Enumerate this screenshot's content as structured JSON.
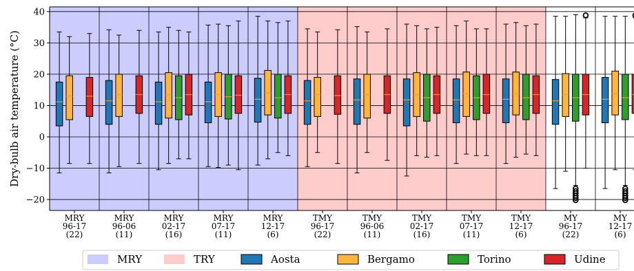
{
  "chart_data": {
    "type": "boxplot",
    "ylabel": "Dry-bulb air temperature (°C)",
    "ylim": [
      -23.5,
      41.5
    ],
    "yticks": [
      -20,
      -10,
      0,
      10,
      20,
      30,
      40
    ],
    "grid": true,
    "legend_position": "bottom",
    "legend": [
      {
        "label": "MRY",
        "color": "#ccccff"
      },
      {
        "label": "TRY",
        "color": "#ffcccc"
      },
      {
        "label": "Aosta",
        "color": "#1f77b4"
      },
      {
        "label": "Bergamo",
        "color": "#ffb63a"
      },
      {
        "label": "Torino",
        "color": "#2ca02c"
      },
      {
        "label": "Udine",
        "color": "#d62728"
      }
    ],
    "series": [
      {
        "name": "Aosta",
        "color": "#1f77b4"
      },
      {
        "name": "Bergamo",
        "color": "#ffb63a"
      },
      {
        "name": "Torino",
        "color": "#2ca02c"
      },
      {
        "name": "Udine",
        "color": "#d62728"
      }
    ],
    "region_colors": {
      "MRY": "#ccccff",
      "TRY": "#ffcccc",
      "MY": "#ffffff"
    },
    "median_color": "#ff9a1e",
    "groups": [
      {
        "label": [
          "MRY",
          "96-17",
          "(22)"
        ],
        "type": "MRY",
        "boxes": [
          {
            "series": "Aosta",
            "min": -11.5,
            "q1": 3.5,
            "median": 11.2,
            "q3": 17.5,
            "max": 33.5,
            "outliers": []
          },
          {
            "series": "Bergamo",
            "min": -8.5,
            "q1": 5.5,
            "median": 13.0,
            "q3": 19.5,
            "max": 32.0,
            "outliers": []
          },
          {
            "series": "Udine",
            "min": -8.5,
            "q1": 6.5,
            "median": 13.0,
            "q3": 19.0,
            "max": 33.0,
            "outliers": []
          }
        ]
      },
      {
        "label": [
          "MRY",
          "96-06",
          "(11)"
        ],
        "type": "MRY",
        "boxes": [
          {
            "series": "Aosta",
            "min": -11.5,
            "q1": 4.0,
            "median": 11.5,
            "q3": 18.0,
            "max": 34.2,
            "outliers": []
          },
          {
            "series": "Bergamo",
            "min": -9.5,
            "q1": 6.5,
            "median": 13.5,
            "q3": 20.0,
            "max": 32.5,
            "outliers": []
          },
          {
            "series": "Udine",
            "min": -8.5,
            "q1": 7.5,
            "median": 13.5,
            "q3": 19.5,
            "max": 34.0,
            "outliers": []
          }
        ]
      },
      {
        "label": [
          "MRY",
          "02-17",
          "(16)"
        ],
        "type": "MRY",
        "boxes": [
          {
            "series": "Aosta",
            "min": -10.5,
            "q1": 4.0,
            "median": 11.2,
            "q3": 17.5,
            "max": 33.5,
            "outliers": []
          },
          {
            "series": "Bergamo",
            "min": -8.5,
            "q1": 6.0,
            "median": 13.5,
            "q3": 20.5,
            "max": 35.0,
            "outliers": []
          },
          {
            "series": "Torino",
            "min": -7.0,
            "q1": 5.5,
            "median": 12.5,
            "q3": 19.5,
            "max": 34.0,
            "outliers": []
          },
          {
            "series": "Udine",
            "min": -7.0,
            "q1": 7.0,
            "median": 13.5,
            "q3": 20.0,
            "max": 33.5,
            "outliers": []
          }
        ]
      },
      {
        "label": [
          "MRY",
          "07-17",
          "(11)"
        ],
        "type": "MRY",
        "boxes": [
          {
            "series": "Aosta",
            "min": -9.5,
            "q1": 4.5,
            "median": 11.2,
            "q3": 17.5,
            "max": 35.7,
            "outliers": []
          },
          {
            "series": "Bergamo",
            "min": -9.8,
            "q1": 6.5,
            "median": 13.5,
            "q3": 20.5,
            "max": 36.0,
            "outliers": []
          },
          {
            "series": "Torino",
            "min": -9.0,
            "q1": 5.7,
            "median": 12.8,
            "q3": 20.0,
            "max": 35.5,
            "outliers": []
          },
          {
            "series": "Udine",
            "min": -10.5,
            "q1": 7.5,
            "median": 13.3,
            "q3": 19.5,
            "max": 37.0,
            "outliers": []
          }
        ]
      },
      {
        "label": [
          "MRY",
          "12-17",
          "(6)"
        ],
        "type": "MRY",
        "boxes": [
          {
            "series": "Aosta",
            "min": -9.0,
            "q1": 4.7,
            "median": 12.0,
            "q3": 18.7,
            "max": 38.5,
            "outliers": []
          },
          {
            "series": "Bergamo",
            "min": -7.0,
            "q1": 7.0,
            "median": 14.0,
            "q3": 21.2,
            "max": 37.0,
            "outliers": []
          },
          {
            "series": "Torino",
            "min": -5.0,
            "q1": 6.0,
            "median": 12.5,
            "q3": 20.0,
            "max": 36.5,
            "outliers": []
          },
          {
            "series": "Udine",
            "min": -6.0,
            "q1": 7.5,
            "median": 13.5,
            "q3": 19.5,
            "max": 37.0,
            "outliers": []
          }
        ]
      },
      {
        "label": [
          "TMY",
          "96-17",
          "(22)"
        ],
        "type": "TRY",
        "boxes": [
          {
            "series": "Aosta",
            "min": -9.5,
            "q1": 4.0,
            "median": 11.5,
            "q3": 18.0,
            "max": 34.5,
            "outliers": []
          },
          {
            "series": "Bergamo",
            "min": -5.0,
            "q1": 6.5,
            "median": 13.5,
            "q3": 19.0,
            "max": 33.5,
            "outliers": []
          },
          {
            "series": "Udine",
            "min": -8.5,
            "q1": 7.2,
            "median": 13.2,
            "q3": 19.5,
            "max": 34.2,
            "outliers": []
          }
        ]
      },
      {
        "label": [
          "TMY",
          "96-06",
          "(11)"
        ],
        "type": "TRY",
        "boxes": [
          {
            "series": "Aosta",
            "min": -11.5,
            "q1": 4.0,
            "median": 11.8,
            "q3": 18.5,
            "max": 35.2,
            "outliers": []
          },
          {
            "series": "Bergamo",
            "min": -5.0,
            "q1": 6.0,
            "median": 13.5,
            "q3": 20.0,
            "max": 33.5,
            "outliers": []
          },
          {
            "series": "Udine",
            "min": -7.5,
            "q1": 7.5,
            "median": 13.5,
            "q3": 19.5,
            "max": 34.5,
            "outliers": []
          }
        ]
      },
      {
        "label": [
          "TMY",
          "02-17",
          "(16)"
        ],
        "type": "TRY",
        "boxes": [
          {
            "series": "Aosta",
            "min": -12.5,
            "q1": 3.5,
            "median": 11.8,
            "q3": 18.5,
            "max": 36.0,
            "outliers": []
          },
          {
            "series": "Bergamo",
            "min": -6.0,
            "q1": 6.5,
            "median": 13.5,
            "q3": 20.5,
            "max": 35.5,
            "outliers": []
          },
          {
            "series": "Torino",
            "min": -6.5,
            "q1": 5.0,
            "median": 12.5,
            "q3": 20.0,
            "max": 34.5,
            "outliers": []
          },
          {
            "series": "Udine",
            "min": -6.0,
            "q1": 7.5,
            "median": 13.5,
            "q3": 19.5,
            "max": 35.0,
            "outliers": []
          }
        ]
      },
      {
        "label": [
          "TMY",
          "07-17",
          "(11)"
        ],
        "type": "TRY",
        "boxes": [
          {
            "series": "Aosta",
            "min": -8.5,
            "q1": 4.5,
            "median": 11.8,
            "q3": 18.5,
            "max": 35.5,
            "outliers": []
          },
          {
            "series": "Bergamo",
            "min": -5.5,
            "q1": 6.5,
            "median": 13.8,
            "q3": 20.7,
            "max": 37.0,
            "outliers": []
          },
          {
            "series": "Torino",
            "min": -6.0,
            "q1": 5.5,
            "median": 12.5,
            "q3": 19.5,
            "max": 34.5,
            "outliers": []
          },
          {
            "series": "Udine",
            "min": -6.0,
            "q1": 7.5,
            "median": 13.5,
            "q3": 20.0,
            "max": 34.5,
            "outliers": []
          }
        ]
      },
      {
        "label": [
          "TMY",
          "12-17",
          "(6)"
        ],
        "type": "TRY",
        "boxes": [
          {
            "series": "Aosta",
            "min": -8.5,
            "q1": 4.5,
            "median": 12.0,
            "q3": 18.5,
            "max": 36.0,
            "outliers": []
          },
          {
            "series": "Bergamo",
            "min": -6.5,
            "q1": 7.0,
            "median": 13.8,
            "q3": 20.7,
            "max": 36.5,
            "outliers": []
          },
          {
            "series": "Torino",
            "min": -5.5,
            "q1": 5.5,
            "median": 12.5,
            "q3": 20.0,
            "max": 35.5,
            "outliers": []
          },
          {
            "series": "Udine",
            "min": -6.0,
            "q1": 7.5,
            "median": 13.5,
            "q3": 19.5,
            "max": 36.0,
            "outliers": []
          }
        ]
      },
      {
        "label": [
          "MY",
          "96-17",
          "(22)"
        ],
        "type": "MY",
        "boxes": [
          {
            "series": "Aosta",
            "min": -16.5,
            "q1": 4.0,
            "median": 11.5,
            "q3": 18.3,
            "max": 38.5,
            "outliers": []
          },
          {
            "series": "Bergamo",
            "min": -11.0,
            "q1": 6.5,
            "median": 13.5,
            "q3": 20.2,
            "max": 38.5,
            "outliers": []
          },
          {
            "series": "Torino",
            "min": -15.5,
            "q1": 5.0,
            "median": 12.5,
            "q3": 20.0,
            "max": 39.0,
            "outliers": [
              -16.5,
              -17.3,
              -18.0,
              -18.8,
              -19.5,
              -20.2
            ]
          },
          {
            "series": "Udine",
            "min": -10.0,
            "q1": 7.0,
            "median": 13.5,
            "q3": 20.0,
            "max": 38.0,
            "outliers": [
              38.8
            ]
          }
        ]
      },
      {
        "label": [
          "MY",
          "12-17",
          "(6)"
        ],
        "type": "MY",
        "boxes": [
          {
            "series": "Aosta",
            "min": -16.5,
            "q1": 4.5,
            "median": 12.0,
            "q3": 19.0,
            "max": 38.5,
            "outliers": []
          },
          {
            "series": "Bergamo",
            "min": -10.5,
            "q1": 7.0,
            "median": 13.8,
            "q3": 21.0,
            "max": 38.5,
            "outliers": []
          },
          {
            "series": "Torino",
            "min": -15.5,
            "q1": 5.5,
            "median": 12.5,
            "q3": 20.0,
            "max": 38.5,
            "outliers": [
              -16.5,
              -17.3,
              -18.0,
              -18.8,
              -19.5,
              -20.2
            ]
          },
          {
            "series": "Udine",
            "min": -10.5,
            "q1": 7.5,
            "median": 13.5,
            "q3": 20.0,
            "max": 38.0,
            "outliers": [
              38.8
            ]
          }
        ]
      }
    ]
  }
}
